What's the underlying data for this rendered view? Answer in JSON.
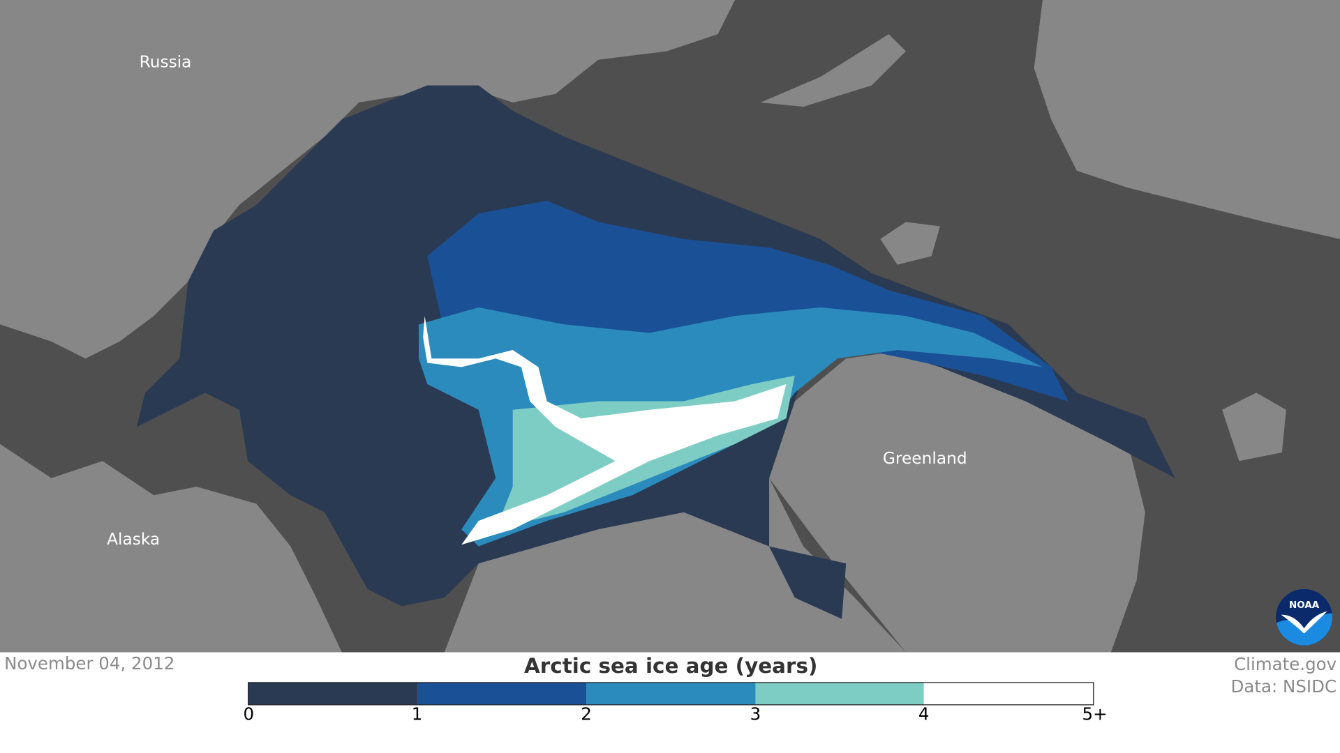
{
  "map": {
    "labels": {
      "russia": "Russia",
      "alaska": "Alaska",
      "greenland": "Greenland"
    },
    "colors": {
      "land": "#878787",
      "ocean": "#4f4f4f"
    }
  },
  "footer": {
    "date": "November 04, 2012",
    "credit": "Climate.gov",
    "source": "Data: NSIDC"
  },
  "logo": {
    "text": "NOAA"
  },
  "legend": {
    "title": "Arctic sea ice age (years)",
    "ticks": [
      "0",
      "1",
      "2",
      "3",
      "4",
      "5+"
    ],
    "colors": [
      "#2a3a52",
      "#1a5196",
      "#2b8bbd",
      "#7ecdc4",
      "#ffffff"
    ]
  }
}
